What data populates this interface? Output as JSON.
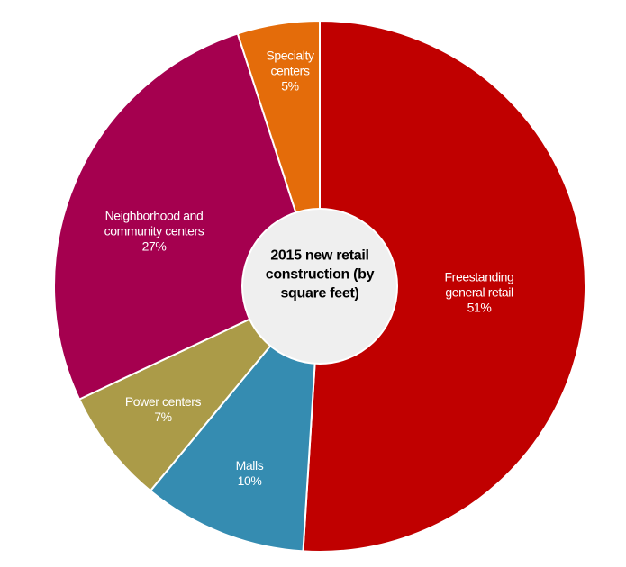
{
  "chart_data": {
    "type": "donut",
    "title": "2015 new retail construction (by square feet)",
    "categories": [
      "Freestanding general retail",
      "Malls",
      "Power centers",
      "Neighborhood and community centers",
      "Specialty centers"
    ],
    "values": [
      51,
      10,
      7,
      27,
      5
    ],
    "value_labels": [
      "51%",
      "10%",
      "7%",
      "27%",
      "5%"
    ],
    "colors": [
      "#c00000",
      "#358cb1",
      "#ab9b48",
      "#a5004f",
      "#e46c0a"
    ]
  }
}
